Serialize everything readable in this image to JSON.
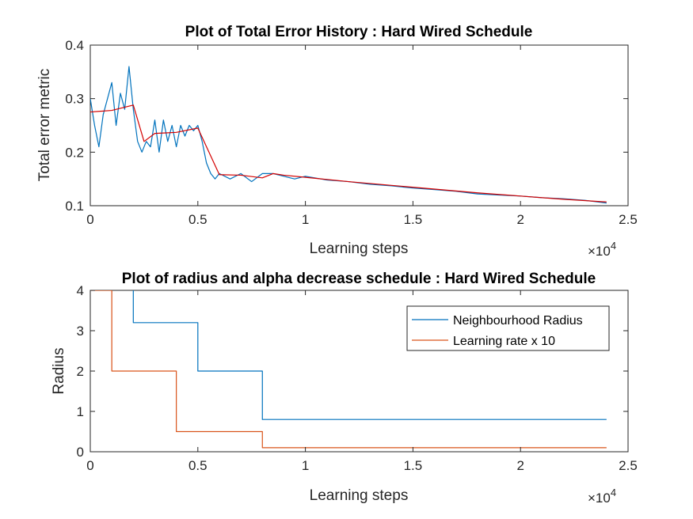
{
  "chart_data": [
    {
      "type": "line",
      "title": "Plot of Total Error History : Hard Wired Schedule",
      "xlabel": "Learning steps",
      "ylabel": "Total error metric",
      "xlim": [
        0,
        25000
      ],
      "ylim": [
        0.1,
        0.4
      ],
      "x_exponent_label": "×10",
      "x_exponent_power": "4",
      "xticks": [
        0,
        5000,
        10000,
        15000,
        20000,
        25000
      ],
      "xtick_labels": [
        "0",
        "0.5",
        "1",
        "1.5",
        "2",
        "2.5"
      ],
      "yticks": [
        0.1,
        0.2,
        0.3,
        0.4
      ],
      "ytick_labels": [
        "0.1",
        "0.2",
        "0.3",
        "0.4"
      ],
      "colors": {
        "raw": "#0072BD",
        "smoothed": "#D40000"
      },
      "series": [
        {
          "x": [
            0,
            200,
            400,
            600,
            800,
            1000,
            1200,
            1400,
            1600,
            1800,
            2000,
            2200,
            2400,
            2600,
            2800,
            3000,
            3200,
            3400,
            3600,
            3800,
            4000,
            4200,
            4400,
            4600,
            4800,
            5000,
            5200,
            5400,
            5600,
            5800,
            6000,
            6500,
            7000,
            7500,
            8000,
            8500,
            9000,
            9500,
            10000,
            11000,
            12000,
            13000,
            14000,
            15000,
            16000,
            17000,
            18000,
            19000,
            20000,
            21000,
            22000,
            23000,
            24000
          ],
          "y": [
            0.3,
            0.25,
            0.21,
            0.27,
            0.3,
            0.33,
            0.25,
            0.31,
            0.28,
            0.36,
            0.28,
            0.22,
            0.2,
            0.22,
            0.21,
            0.26,
            0.2,
            0.26,
            0.22,
            0.25,
            0.21,
            0.25,
            0.23,
            0.25,
            0.24,
            0.25,
            0.22,
            0.18,
            0.16,
            0.15,
            0.16,
            0.15,
            0.16,
            0.145,
            0.16,
            0.16,
            0.155,
            0.15,
            0.155,
            0.148,
            0.145,
            0.14,
            0.137,
            0.133,
            0.13,
            0.127,
            0.122,
            0.12,
            0.118,
            0.115,
            0.113,
            0.11,
            0.105
          ]
        },
        {
          "x": [
            0,
            1000,
            2000,
            2500,
            3000,
            3500,
            4000,
            5000,
            6000,
            7000,
            8000,
            8500,
            9000,
            10000,
            12000,
            14000,
            16000,
            18000,
            20000,
            22000,
            24000
          ],
          "y": [
            0.275,
            0.278,
            0.288,
            0.22,
            0.235,
            0.236,
            0.237,
            0.245,
            0.158,
            0.157,
            0.152,
            0.16,
            0.157,
            0.153,
            0.145,
            0.138,
            0.131,
            0.124,
            0.118,
            0.112,
            0.107
          ]
        }
      ]
    },
    {
      "type": "line",
      "title": "Plot of radius and alpha decrease schedule : Hard Wired Schedule",
      "xlabel": "Learning steps",
      "ylabel": "Radius",
      "xlim": [
        0,
        25000
      ],
      "ylim": [
        0,
        4
      ],
      "x_exponent_label": "×10",
      "x_exponent_power": "4",
      "xticks": [
        0,
        5000,
        10000,
        15000,
        20000,
        25000
      ],
      "xtick_labels": [
        "0",
        "0.5",
        "1",
        "1.5",
        "2",
        "2.5"
      ],
      "yticks": [
        0,
        1,
        2,
        3,
        4
      ],
      "ytick_labels": [
        "0",
        "1",
        "2",
        "3",
        "4"
      ],
      "legend_position": "top-right",
      "series": [
        {
          "name": "Neighbourhood Radius",
          "color": "#0072BD",
          "step": true,
          "x": [
            0,
            2000,
            5000,
            8000,
            24000
          ],
          "y": [
            5,
            3.2,
            2,
            0.8,
            0.8
          ]
        },
        {
          "name": "Learning rate x 10",
          "color": "#D95319",
          "step": true,
          "x": [
            0,
            1000,
            4000,
            8000,
            24000
          ],
          "y": [
            4,
            2,
            0.5,
            0.1,
            0.1
          ]
        }
      ]
    }
  ]
}
